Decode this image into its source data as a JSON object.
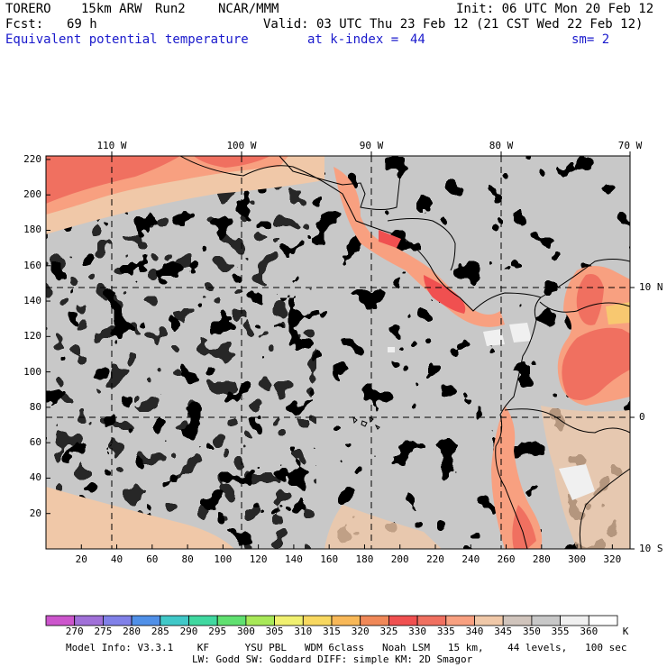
{
  "header": {
    "model": "TORERO",
    "resolution": "15km ARW",
    "run": "Run2",
    "org": "NCAR/MMM",
    "init": "Init: 06 UTC Mon 20 Feb 12",
    "fcst_label": "Fcst:",
    "fcst_value": "69 h",
    "valid": "Valid: 03 UTC Thu 23 Feb 12 (21 CST Wed 22 Feb 12)",
    "field": "Equivalent potential temperature",
    "level": "at k-index =",
    "level_value": "44",
    "smooth": "sm= 2"
  },
  "chart_data": {
    "type": "heatmap",
    "title": "Equivalent potential temperature",
    "units": "K",
    "x_grid_ticks": [
      "20",
      "40",
      "60",
      "80",
      "100",
      "120",
      "140",
      "160",
      "180",
      "200",
      "220",
      "240",
      "260",
      "280",
      "300",
      "320"
    ],
    "y_grid_ticks": [
      "20",
      "40",
      "60",
      "80",
      "100",
      "120",
      "140",
      "160",
      "180",
      "200",
      "220"
    ],
    "lon_labels": [
      "110 W",
      "100 W",
      "90 W",
      "80 W",
      "70 W"
    ],
    "lat_labels": [
      "10 N",
      "0",
      "10 S"
    ],
    "colorbar_levels": [
      "270",
      "275",
      "280",
      "285",
      "290",
      "295",
      "300",
      "305",
      "310",
      "315",
      "320",
      "325",
      "330",
      "335",
      "340",
      "345",
      "350",
      "355",
      "360"
    ],
    "colorbar_colors": [
      "#cc55cc",
      "#a070d8",
      "#8080e8",
      "#5090e8",
      "#40c8c8",
      "#40d8a0",
      "#60e070",
      "#a8e858",
      "#f0f070",
      "#f8d860",
      "#f8b858",
      "#f08858",
      "#f05050",
      "#f07060",
      "#f8a080",
      "#f0c8a8",
      "#d0c4bc",
      "#c8c8c8",
      "#f0f0f0",
      "#ffffff"
    ],
    "colorbar_unit": "K",
    "dominant_range": "340-355 K"
  },
  "footer": {
    "line1": "Model Info: V3.3.1    KF      YSU PBL   WDM 6class   Noah LSM   15 km,    44 levels,   100 sec",
    "line2": "LW: Godd SW: Goddard DIFF: simple KM: 2D Smagor"
  }
}
